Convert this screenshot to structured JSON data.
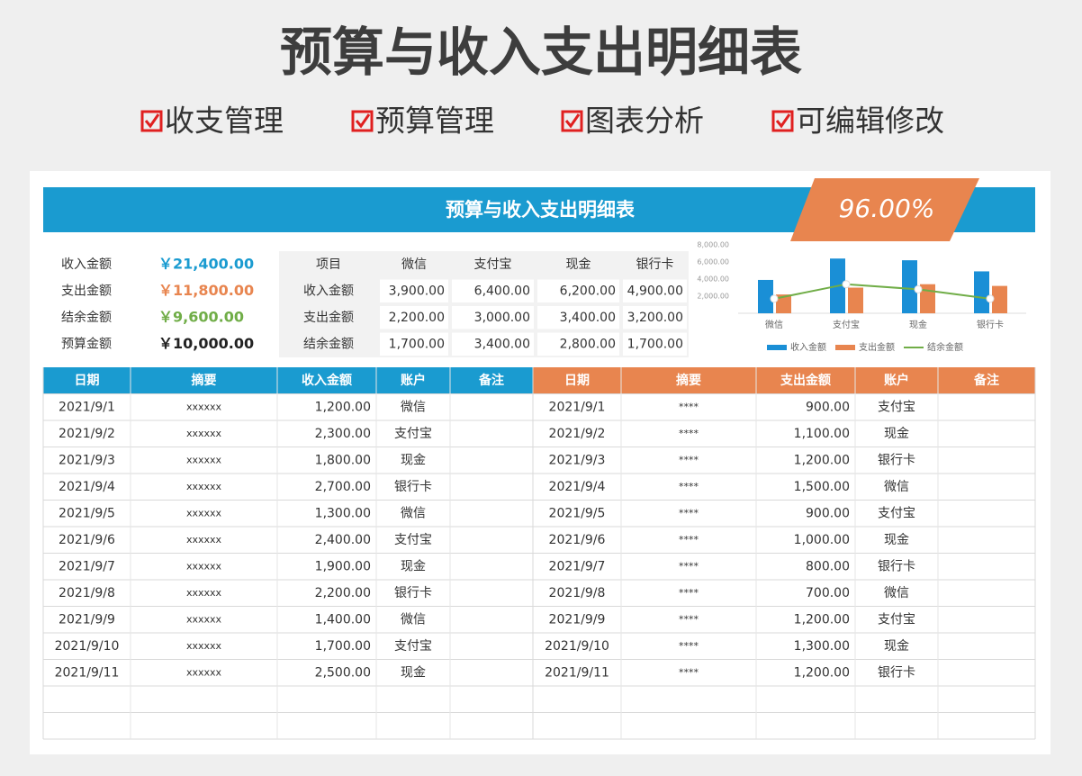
{
  "header": {
    "title": "预算与收入支出明细表",
    "features": [
      "收支管理",
      "预算管理",
      "图表分析",
      "可编辑修改"
    ]
  },
  "banner": {
    "title": "预算与收入支出明细表",
    "rate": "96.00%"
  },
  "summary": [
    {
      "label": "收入金额",
      "value": "￥21,400.00"
    },
    {
      "label": "支出金额",
      "value": "￥11,800.00"
    },
    {
      "label": "结余金额",
      "value": "￥9,600.00"
    },
    {
      "label": "预算金额",
      "value": "￥10,000.00"
    }
  ],
  "accounts": {
    "header": [
      "项目",
      "微信",
      "支付宝",
      "现金",
      "银行卡"
    ],
    "rows": [
      [
        "收入金额",
        "3,900.00",
        "6,400.00",
        "6,200.00",
        "4,900.00"
      ],
      [
        "支出金额",
        "2,200.00",
        "3,000.00",
        "3,400.00",
        "3,200.00"
      ],
      [
        "结余金额",
        "1,700.00",
        "3,400.00",
        "2,800.00",
        "1,700.00"
      ]
    ]
  },
  "income": {
    "header": [
      "日期",
      "摘要",
      "收入金额",
      "账户",
      "备注"
    ],
    "rows": [
      [
        "2021/9/1",
        "xxxxxx",
        "1,200.00",
        "微信"
      ],
      [
        "2021/9/2",
        "xxxxxx",
        "2,300.00",
        "支付宝"
      ],
      [
        "2021/9/3",
        "xxxxxx",
        "1,800.00",
        "现金"
      ],
      [
        "2021/9/4",
        "xxxxxx",
        "2,700.00",
        "银行卡"
      ],
      [
        "2021/9/5",
        "xxxxxx",
        "1,300.00",
        "微信"
      ],
      [
        "2021/9/6",
        "xxxxxx",
        "2,400.00",
        "支付宝"
      ],
      [
        "2021/9/7",
        "xxxxxx",
        "1,900.00",
        "现金"
      ],
      [
        "2021/9/8",
        "xxxxxx",
        "2,200.00",
        "银行卡"
      ],
      [
        "2021/9/9",
        "xxxxxx",
        "1,400.00",
        "微信"
      ],
      [
        "2021/9/10",
        "xxxxxx",
        "1,700.00",
        "支付宝"
      ],
      [
        "2021/9/11",
        "xxxxxx",
        "2,500.00",
        "现金"
      ]
    ]
  },
  "expense": {
    "header": [
      "日期",
      "摘要",
      "支出金额",
      "账户",
      "备注"
    ],
    "rows": [
      [
        "2021/9/1",
        "****",
        "900.00",
        "支付宝"
      ],
      [
        "2021/9/2",
        "****",
        "1,100.00",
        "现金"
      ],
      [
        "2021/9/3",
        "****",
        "1,200.00",
        "银行卡"
      ],
      [
        "2021/9/4",
        "****",
        "1,500.00",
        "微信"
      ],
      [
        "2021/9/5",
        "****",
        "900.00",
        "支付宝"
      ],
      [
        "2021/9/6",
        "****",
        "1,000.00",
        "现金"
      ],
      [
        "2021/9/7",
        "****",
        "800.00",
        "银行卡"
      ],
      [
        "2021/9/8",
        "****",
        "700.00",
        "微信"
      ],
      [
        "2021/9/9",
        "****",
        "1,200.00",
        "支付宝"
      ],
      [
        "2021/9/10",
        "****",
        "1,300.00",
        "现金"
      ],
      [
        "2021/9/11",
        "****",
        "1,200.00",
        "银行卡"
      ]
    ]
  },
  "chart_data": {
    "type": "bar",
    "categories": [
      "微信",
      "支付宝",
      "现金",
      "银行卡"
    ],
    "series": [
      {
        "name": "收入金额",
        "color": "#1a8fd6",
        "type": "bar",
        "values": [
          3900,
          6400,
          6200,
          4900
        ]
      },
      {
        "name": "支出金额",
        "color": "#e8854f",
        "type": "bar",
        "values": [
          2200,
          3000,
          3400,
          3200
        ]
      },
      {
        "name": "结余金额",
        "color": "#70ad47",
        "type": "line",
        "values": [
          1700,
          3400,
          2800,
          1700
        ]
      }
    ],
    "ylim": [
      0,
      8000
    ],
    "yticks": [
      {
        "value": 2000,
        "label": "2,000.00"
      },
      {
        "value": 4000,
        "label": "4,000.00"
      },
      {
        "value": 6000,
        "label": "6,000.00"
      },
      {
        "value": 8000,
        "label": "8,000.00"
      }
    ]
  }
}
